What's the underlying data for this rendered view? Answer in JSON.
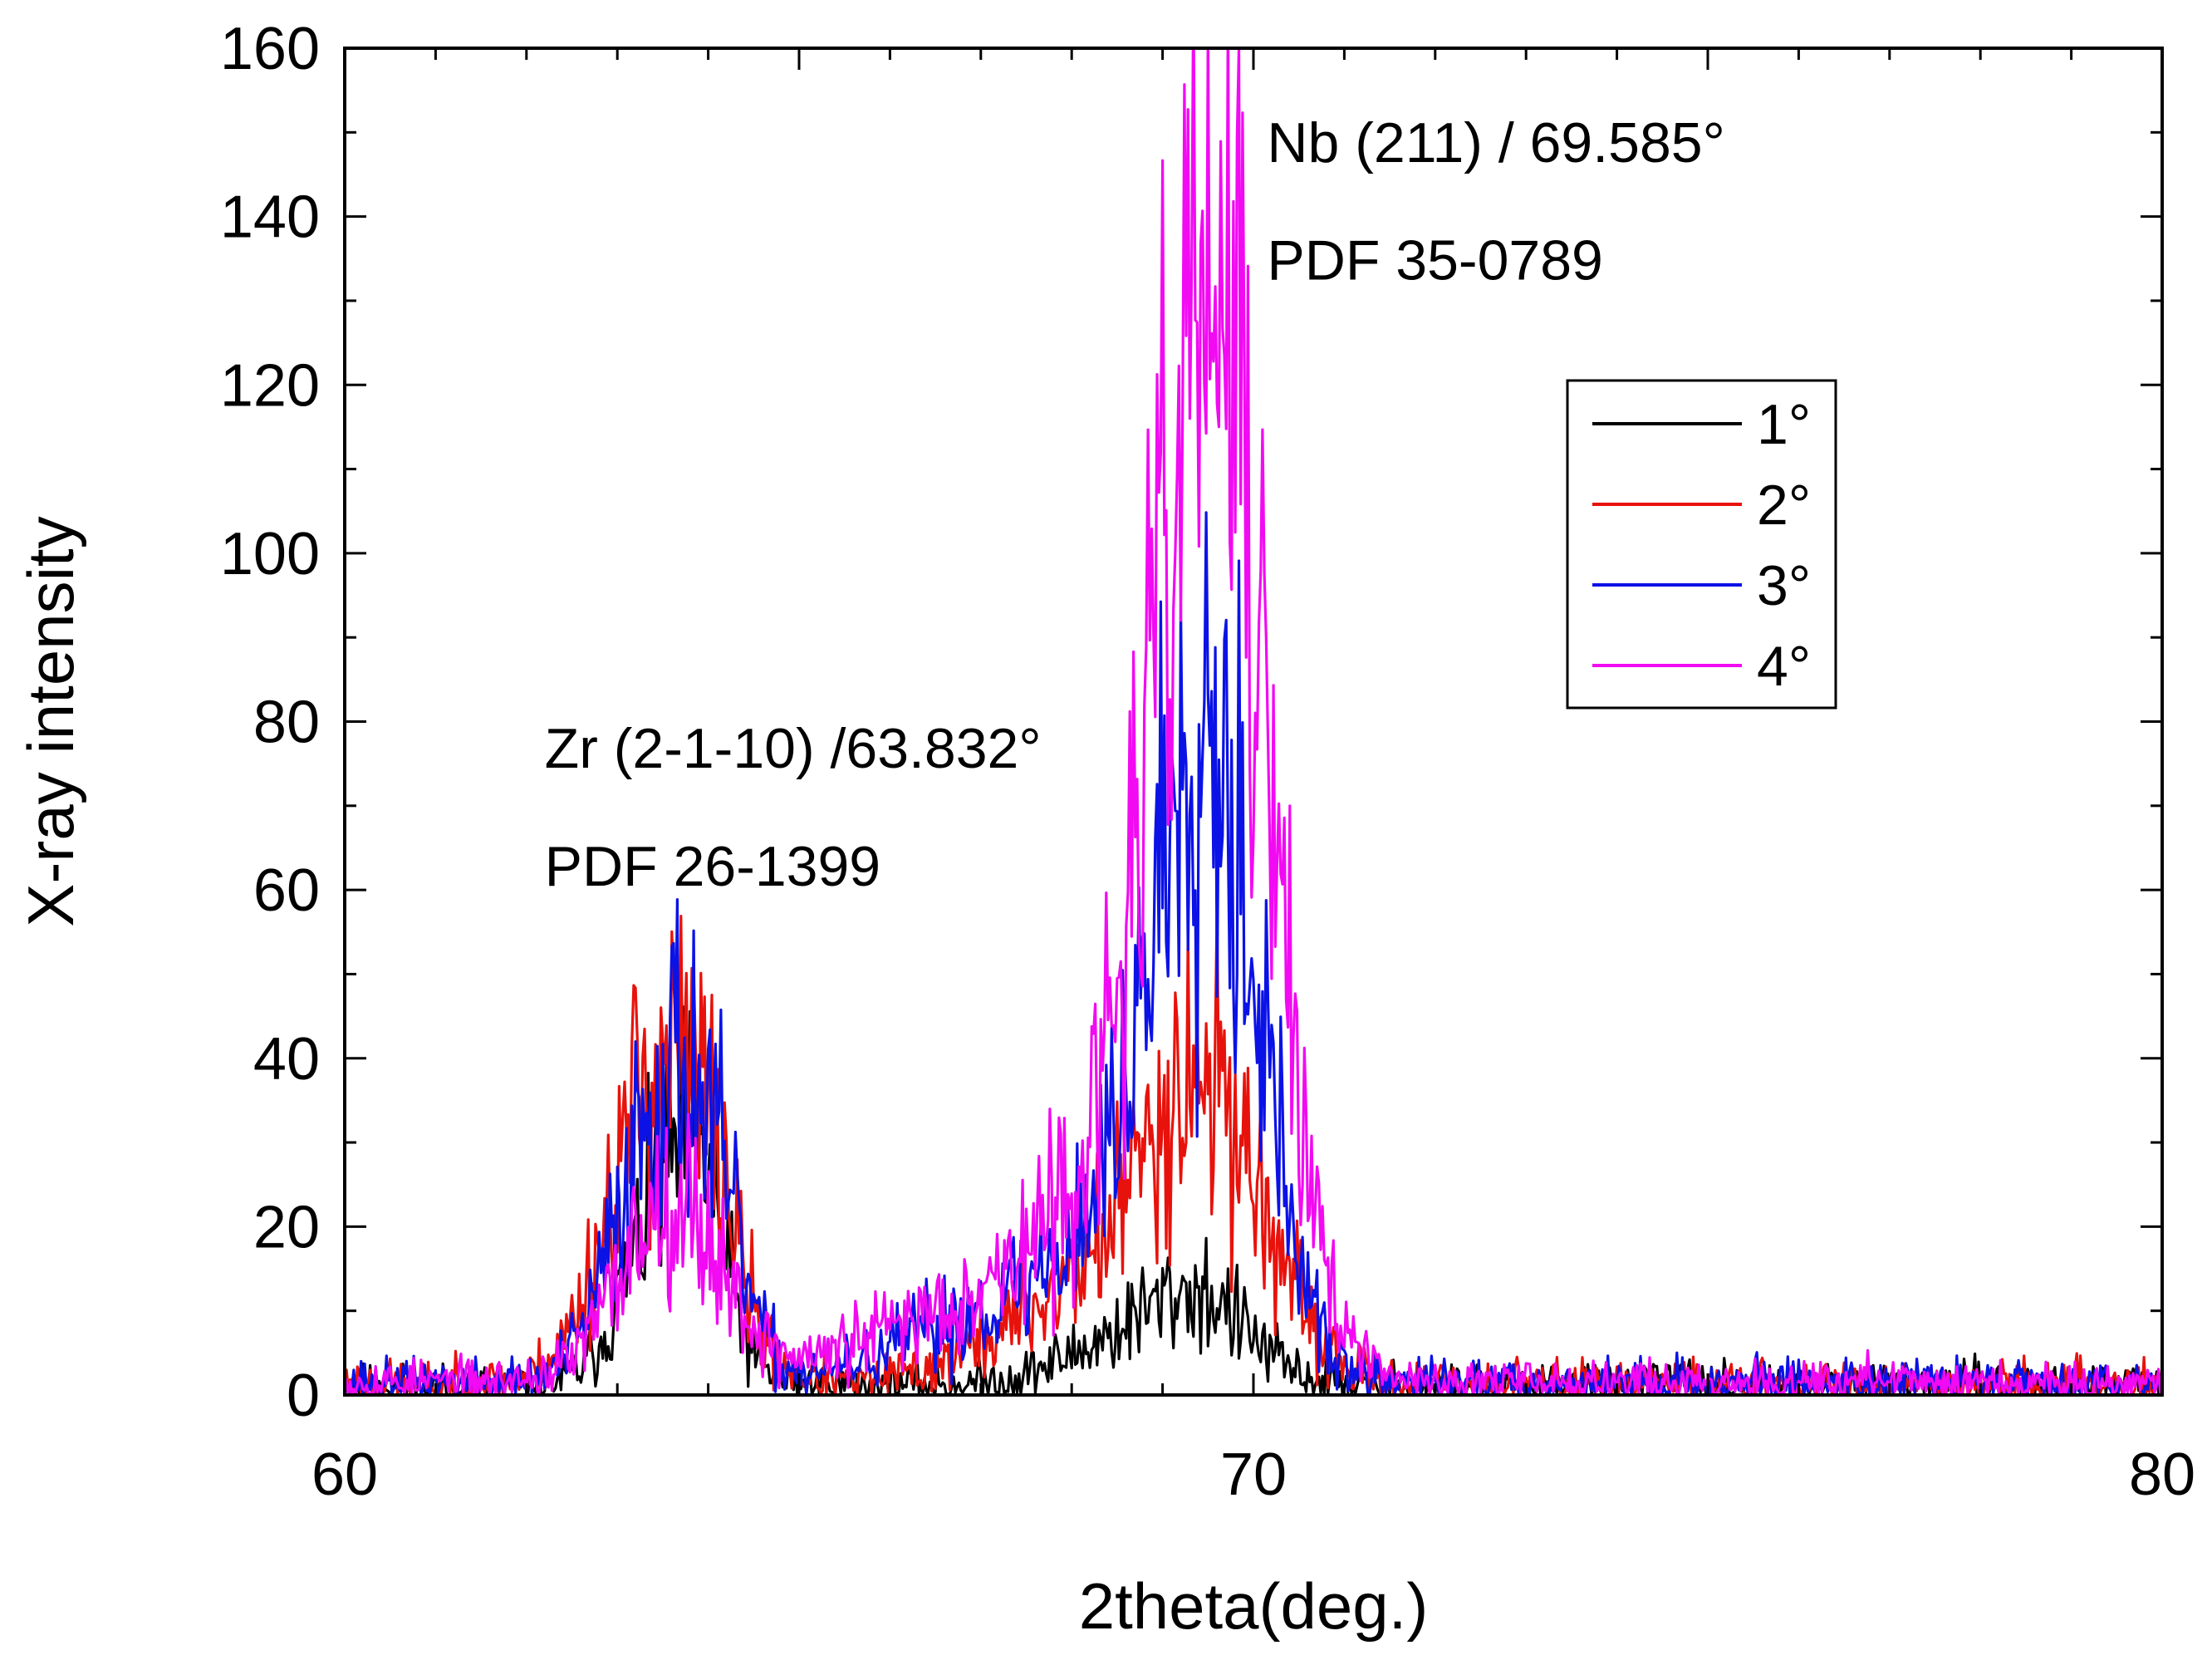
{
  "chart_data": {
    "type": "line",
    "xlabel": "2theta(deg.)",
    "ylabel": "X-ray intensity",
    "xlim": [
      60,
      80
    ],
    "ylim": [
      0,
      160
    ],
    "x_ticks": [
      60,
      70,
      80
    ],
    "y_ticks": [
      0,
      20,
      40,
      60,
      80,
      100,
      120,
      140,
      160
    ],
    "legend_position": "upper-right",
    "annotations": [
      {
        "id": "zr",
        "lines": [
          "Zr (2-1-10) /63.832°",
          "PDF 26-1399"
        ],
        "x": 62.2,
        "y": [
          74.5,
          60.5
        ]
      },
      {
        "id": "nb",
        "lines": [
          "Nb (211) / 69.585°",
          "PDF 35-0789"
        ],
        "x": 70.15,
        "y": [
          146.5,
          132.5
        ]
      }
    ],
    "series": [
      {
        "name": "1°",
        "color": "#000000",
        "seed": 11,
        "noise": 0.22,
        "base": 1.2,
        "peaks": [
          [
            63.6,
            0.45,
            24
          ],
          [
            63.95,
            0.22,
            10
          ],
          [
            69.4,
            0.55,
            10
          ],
          [
            68.4,
            0.6,
            4
          ]
        ]
      },
      {
        "name": "2°",
        "color": "#e8120c",
        "seed": 23,
        "noise": 0.22,
        "base": 1.5,
        "peaks": [
          [
            63.5,
            0.55,
            38
          ],
          [
            64.05,
            0.25,
            8
          ],
          [
            69.45,
            0.65,
            34
          ],
          [
            68.1,
            0.9,
            10
          ]
        ]
      },
      {
        "name": "3°",
        "color": "#0b12e6",
        "seed": 37,
        "noise": 0.22,
        "base": 1.6,
        "peaks": [
          [
            63.55,
            0.5,
            36
          ],
          [
            64.1,
            0.3,
            8
          ],
          [
            69.5,
            0.55,
            75
          ],
          [
            68.6,
            0.7,
            14
          ],
          [
            67.2,
            1.0,
            8
          ]
        ]
      },
      {
        "name": "4°",
        "color": "#f20af2",
        "seed": 53,
        "noise": 0.2,
        "base": 1.6,
        "peaks": [
          [
            63.6,
            0.55,
            22
          ],
          [
            69.55,
            0.6,
            120
          ],
          [
            68.5,
            0.85,
            18
          ],
          [
            66.8,
            1.1,
            8
          ]
        ]
      }
    ]
  }
}
